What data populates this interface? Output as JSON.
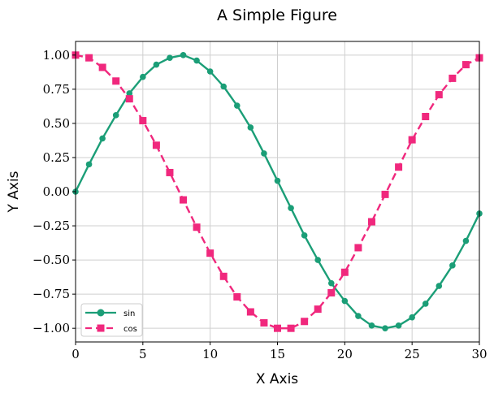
{
  "chart_data": {
    "type": "line",
    "title": "A Simple Figure",
    "xlabel": "X Axis",
    "ylabel": "Y Axis",
    "xlim": [
      0,
      30
    ],
    "ylim": [
      -1.1,
      1.1
    ],
    "x_ticks": [
      0,
      5,
      10,
      15,
      20,
      25,
      30
    ],
    "x_tick_labels": [
      "0",
      "5",
      "10",
      "15",
      "20",
      "25",
      "30"
    ],
    "y_ticks": [
      -1.0,
      -0.75,
      -0.5,
      -0.25,
      0.0,
      0.25,
      0.5,
      0.75,
      1.0
    ],
    "y_tick_labels": [
      "−1.00",
      "−0.75",
      "−0.50",
      "−0.25",
      "0.00",
      "0.25",
      "0.50",
      "0.75",
      "1.00"
    ],
    "grid": true,
    "legend_position": "lower-left",
    "x": [
      0,
      1,
      2,
      3,
      4,
      5,
      6,
      7,
      8,
      9,
      10,
      11,
      12,
      13,
      14,
      15,
      16,
      17,
      18,
      19,
      20,
      21,
      22,
      23,
      24,
      25,
      26,
      27,
      28,
      29,
      30
    ],
    "series": [
      {
        "name": "sin",
        "color": "#1b9e77",
        "line_style": "solid",
        "marker": "circle",
        "values": [
          0.0,
          0.2,
          0.39,
          0.56,
          0.72,
          0.84,
          0.93,
          0.98,
          1.0,
          0.96,
          0.88,
          0.77,
          0.63,
          0.47,
          0.28,
          0.08,
          -0.12,
          -0.32,
          -0.5,
          -0.67,
          -0.8,
          -0.91,
          -0.98,
          -1.0,
          -0.98,
          -0.92,
          -0.82,
          -0.69,
          -0.54,
          -0.36,
          -0.16
        ]
      },
      {
        "name": "cos",
        "color": "#f0287d",
        "line_style": "dashed",
        "marker": "square",
        "values": [
          1.0,
          0.98,
          0.91,
          0.81,
          0.68,
          0.52,
          0.34,
          0.14,
          -0.06,
          -0.26,
          -0.45,
          -0.62,
          -0.77,
          -0.88,
          -0.96,
          -1.0,
          -1.0,
          -0.95,
          -0.86,
          -0.74,
          -0.59,
          -0.41,
          -0.22,
          -0.02,
          0.18,
          0.38,
          0.55,
          0.71,
          0.83,
          0.93,
          0.98
        ]
      }
    ]
  }
}
